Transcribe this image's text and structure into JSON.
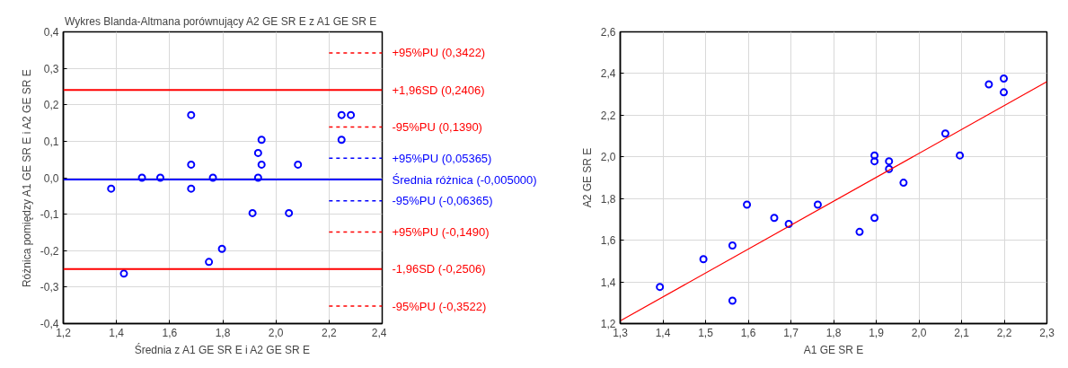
{
  "chart_data": [
    {
      "type": "scatter",
      "title": "Wykres Blanda-Altmana porównujący  A2 GE SR E z A1 GE SR E",
      "xlabel": "Średnia z A1 GE SR E i A2 GE SR E",
      "ylabel": "Różnica pomiędzy A1 GE SR E i A2 GE SR E",
      "x": [
        1.38,
        1.428,
        1.496,
        1.565,
        1.681,
        1.681,
        1.681,
        1.748,
        1.763,
        1.797,
        1.912,
        1.933,
        1.933,
        1.946,
        1.946,
        2.049,
        2.083,
        2.247,
        2.282,
        2.247
      ],
      "values": [
        -0.03,
        -0.263,
        0,
        0,
        0.172,
        0.036,
        -0.03,
        -0.231,
        0,
        -0.195,
        -0.097,
        0.068,
        0,
        0.104,
        0.036,
        -0.097,
        0.036,
        0.172,
        0.172,
        0.104
      ],
      "color": "#0000ff",
      "marker": "circle",
      "grid": true,
      "xlim": [
        1.2,
        2.4
      ],
      "ylim": [
        -0.4,
        0.4
      ],
      "xticks": [
        {
          "value": 1.2,
          "label": "1,2"
        },
        {
          "value": 1.4,
          "label": "1,4"
        },
        {
          "value": 1.6,
          "label": "1,6"
        },
        {
          "value": 1.8,
          "label": "1,8"
        },
        {
          "value": 2.0,
          "label": "2,0"
        },
        {
          "value": 2.2,
          "label": "2,2"
        },
        {
          "value": 2.4,
          "label": "2,4"
        }
      ],
      "yticks": [
        {
          "value": -0.4,
          "label": "-0,4"
        },
        {
          "value": -0.3,
          "label": "-0,3"
        },
        {
          "value": -0.2,
          "label": "-0,2"
        },
        {
          "value": -0.1,
          "label": "-0,1"
        },
        {
          "value": 0,
          "label": "0,0"
        },
        {
          "value": 0.1,
          "label": "0,1"
        },
        {
          "value": 0.2,
          "label": "0,2"
        },
        {
          "value": 0.3,
          "label": "0,3"
        },
        {
          "value": 0.4,
          "label": "0,4"
        }
      ],
      "ref_lines": [
        {
          "axis": "y",
          "value": 0.3422,
          "label": "+95%PU (0,3422)",
          "color": "#ff0000",
          "line_style": "dashed"
        },
        {
          "axis": "y",
          "value": 0.2406,
          "label": "+1,96SD (0,2406)",
          "color": "#ff0000",
          "line_style": "solid"
        },
        {
          "axis": "y",
          "value": 0.139,
          "label": "-95%PU (0,1390)",
          "color": "#ff0000",
          "line_style": "dashed"
        },
        {
          "axis": "y",
          "value": 0.05365,
          "label": "+95%PU (0,05365)",
          "color": "#0000ff",
          "line_style": "dashed"
        },
        {
          "axis": "y",
          "value": -0.005,
          "label": "Średnia różnica (-0,005000)",
          "color": "#0000ff",
          "line_style": "solid"
        },
        {
          "axis": "y",
          "value": -0.06365,
          "label": "-95%PU (-0,06365)",
          "color": "#0000ff",
          "line_style": "dashed"
        },
        {
          "axis": "y",
          "value": -0.149,
          "label": "+95%PU (-0,1490)",
          "color": "#ff0000",
          "line_style": "dashed"
        },
        {
          "axis": "y",
          "value": -0.2506,
          "label": "-1,96SD (-0,2506)",
          "color": "#ff0000",
          "line_style": "solid"
        },
        {
          "axis": "y",
          "value": -0.3522,
          "label": "-95%PU (-0,3522)",
          "color": "#ff0000",
          "line_style": "dashed"
        }
      ]
    },
    {
      "type": "scatter",
      "xlabel": "A1 GE SR E",
      "ylabel": "A2 GE SR E",
      "grid": true,
      "marker": "circle",
      "xlim": [
        1.3,
        2.3
      ],
      "ylim": [
        1.2,
        2.6
      ],
      "xticks": [
        {
          "value": 1.3,
          "label": "1,3"
        },
        {
          "value": 1.4,
          "label": "1,4"
        },
        {
          "value": 1.5,
          "label": "1,5"
        },
        {
          "value": 1.6,
          "label": "1,6"
        },
        {
          "value": 1.7,
          "label": "1,7"
        },
        {
          "value": 1.8,
          "label": "1,8"
        },
        {
          "value": 1.9,
          "label": "1,9"
        },
        {
          "value": 2.0,
          "label": "2,0"
        },
        {
          "value": 2.1,
          "label": "2,1"
        },
        {
          "value": 2.2,
          "label": "2,2"
        },
        {
          "value": 2.3,
          "label": "2,3"
        }
      ],
      "yticks": [
        {
          "value": 1.2,
          "label": "1,2"
        },
        {
          "value": 1.4,
          "label": "1,4"
        },
        {
          "value": 1.6,
          "label": "1,6"
        },
        {
          "value": 1.8,
          "label": "1,8"
        },
        {
          "value": 2.0,
          "label": "2,0"
        },
        {
          "value": 2.2,
          "label": "2,2"
        },
        {
          "value": 2.4,
          "label": "2,4"
        },
        {
          "value": 2.6,
          "label": "2,6"
        }
      ],
      "series": [
        {
          "type": "scatter",
          "color": "#0000ff",
          "x": [
            1.393,
            1.495,
            1.563,
            1.563,
            1.597,
            1.661,
            1.695,
            1.763,
            1.861,
            1.896,
            1.896,
            1.896,
            1.93,
            1.93,
            1.964,
            2.062,
            2.096,
            2.164,
            2.199,
            2.199
          ],
          "values": [
            1.376,
            1.509,
            1.575,
            1.31,
            1.771,
            1.707,
            1.678,
            1.771,
            1.64,
            2.007,
            1.979,
            1.707,
            1.979,
            1.942,
            1.876,
            2.112,
            2.007,
            2.348,
            2.376,
            2.31
          ]
        },
        {
          "type": "line",
          "marker": "none",
          "color": "#ff0000",
          "x": [
            1.3,
            2.3
          ],
          "values": [
            1.213,
            2.361
          ]
        }
      ]
    }
  ]
}
